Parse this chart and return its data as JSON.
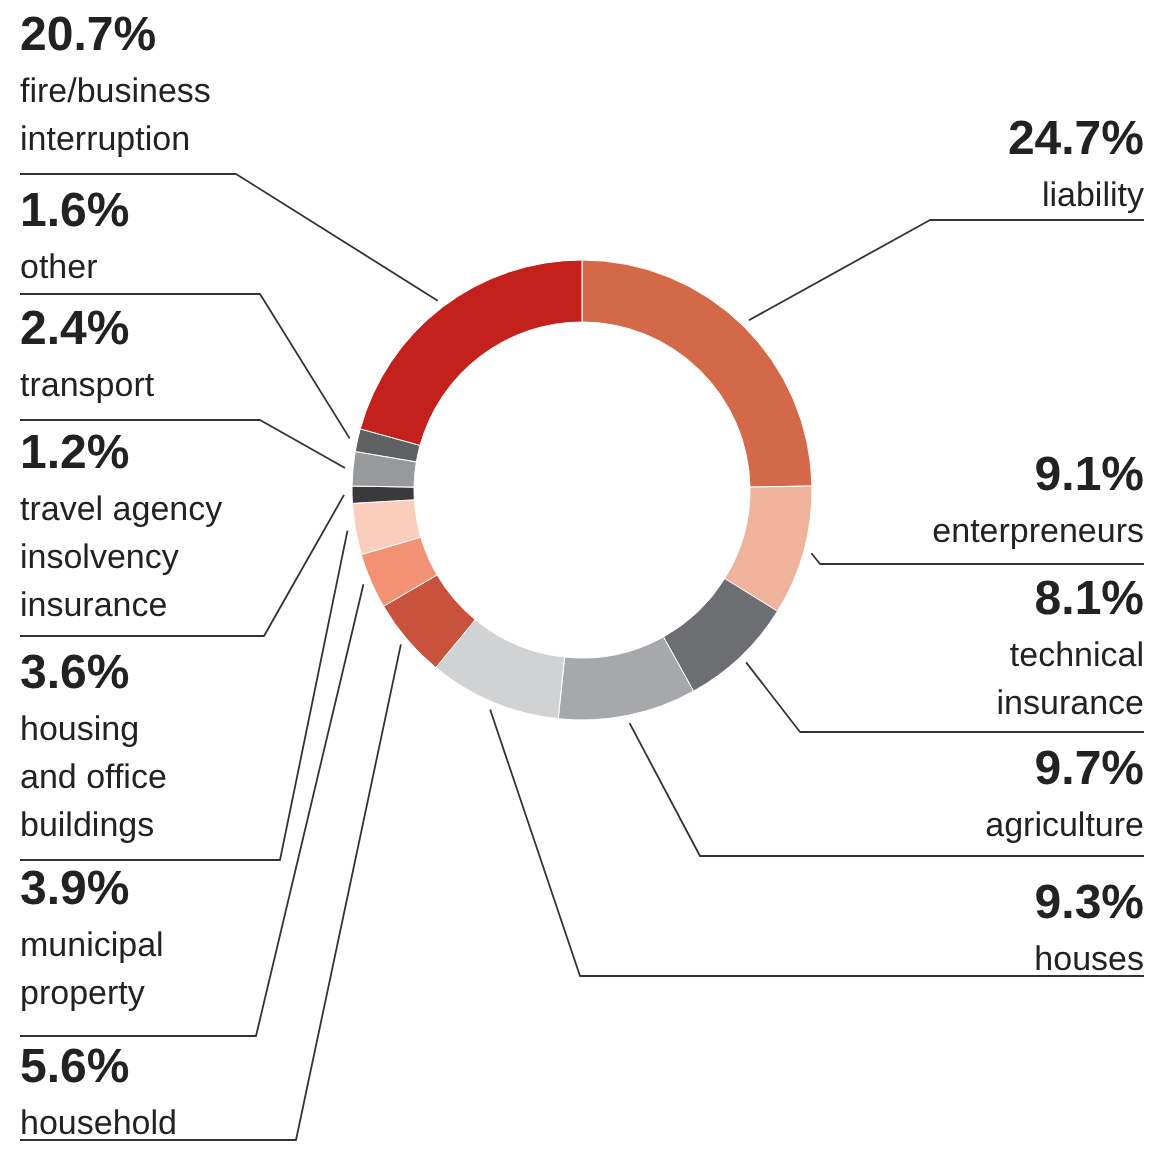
{
  "chart_data": {
    "type": "donut",
    "categories": [
      "liability",
      "enterpreneurs",
      "technical insurance",
      "agriculture",
      "houses",
      "household",
      "municipal property",
      "housing and office buildings",
      "travel agency insolvency insurance",
      "transport",
      "other",
      "fire/business interruption"
    ],
    "values": [
      24.7,
      9.1,
      8.1,
      9.7,
      9.3,
      5.6,
      3.9,
      3.6,
      1.2,
      2.4,
      1.6,
      20.7
    ],
    "value_labels": [
      "24.7%",
      "9.1%",
      "8.1%",
      "9.7%",
      "9.3%",
      "5.6%",
      "3.9%",
      "3.6%",
      "1.2%",
      "2.4%",
      "1.6%",
      "20.7%"
    ],
    "colors": [
      "#d4694a",
      "#efb39c",
      "#6d6e71",
      "#a7a8ab",
      "#d1d2d4",
      "#c9523c",
      "#f29174",
      "#fbcdbd",
      "#3a3a3c",
      "#98999b",
      "#5f6062",
      "#c4211c"
    ]
  }
}
